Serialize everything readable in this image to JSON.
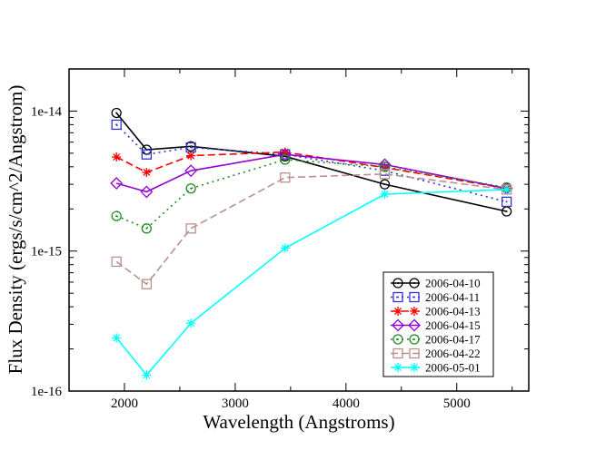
{
  "chart_data": {
    "type": "line",
    "title": "",
    "xlabel": "Wavelength (Angstroms)",
    "ylabel": "Flux Density (ergs/s/cm^2/Angstrom)",
    "xlim": [
      1500,
      5650
    ],
    "ylim": [
      1e-16,
      2e-14
    ],
    "yscale": "log",
    "grid": false,
    "legend_position": "bottom-right",
    "x_ticks": [
      2000,
      3000,
      4000,
      5000
    ],
    "x_tick_labels": [
      "2000",
      "3000",
      "4000",
      "5000"
    ],
    "y_ticks": [
      1e-16,
      1e-15,
      1e-14
    ],
    "y_tick_labels": [
      "1e-16",
      "1e-15",
      "1e-14"
    ],
    "x": [
      1928,
      2200,
      2600,
      3450,
      4350,
      5450
    ],
    "series": [
      {
        "name": "2006-04-10",
        "color": "#000000",
        "dash": "",
        "marker": "circle-dot",
        "values": [
          9.7e-15,
          5.3e-15,
          5.6e-15,
          4.75e-15,
          3e-15,
          1.92e-15
        ]
      },
      {
        "name": "2006-04-11",
        "color": "#3333cc",
        "dash": "2,4",
        "marker": "square-dot",
        "values": [
          8e-15,
          4.9e-15,
          5.5e-15,
          4.9e-15,
          3.75e-15,
          2.25e-15
        ]
      },
      {
        "name": "2006-04-13",
        "color": "#ff0000",
        "dash": "8,4",
        "marker": "asterisk",
        "values": [
          4.7e-15,
          3.65e-15,
          4.8e-15,
          5.1e-15,
          3.95e-15,
          2.8e-15
        ]
      },
      {
        "name": "2006-04-15",
        "color": "#9400d3",
        "dash": "",
        "marker": "diamond",
        "values": [
          3.05e-15,
          2.65e-15,
          3.75e-15,
          4.9e-15,
          4.15e-15,
          2.8e-15
        ]
      },
      {
        "name": "2006-04-17",
        "color": "#228b22",
        "dash": "2,4",
        "marker": "circle-dot",
        "values": [
          1.78e-15,
          1.45e-15,
          2.8e-15,
          4.5e-15,
          4e-15,
          2.85e-15
        ]
      },
      {
        "name": "2006-04-22",
        "color": "#bc8f8f",
        "dash": "8,4",
        "marker": "square",
        "values": [
          8.4e-16,
          5.8e-16,
          1.45e-15,
          3.35e-15,
          3.55e-15,
          2.75e-15
        ]
      },
      {
        "name": "2006-05-01",
        "color": "#00ffff",
        "dash": "",
        "marker": "asterisk",
        "values": [
          2.4e-16,
          1.3e-16,
          3.05e-16,
          1.05e-15,
          2.55e-15,
          2.75e-15
        ]
      }
    ]
  }
}
